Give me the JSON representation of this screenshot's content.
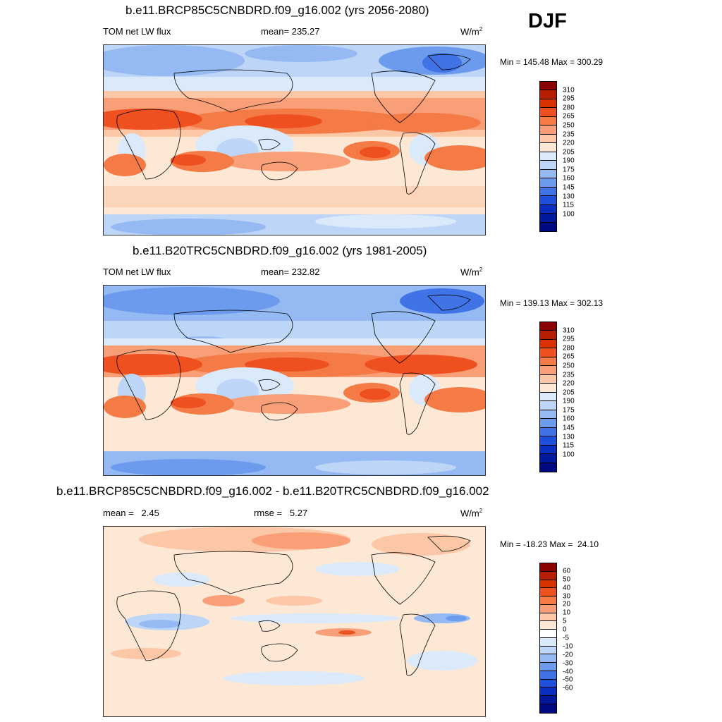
{
  "season": "DJF",
  "panels": [
    {
      "title": "b.e11.BRCP85C5CNBDRD.f09_g16.002 (yrs 2056-2080)",
      "left_label": "TOM net LW flux",
      "center_label": "mean= 235.27",
      "units": "W/m",
      "units_exp": "2",
      "minmax": "Min = 145.48 Max = 300.29",
      "colorbar": {
        "colors": [
          "#8b0000",
          "#b51e00",
          "#d93100",
          "#ee5020",
          "#f47a46",
          "#f99f78",
          "#fbc7a6",
          "#fde8d6",
          "#dbeafa",
          "#bdd5f7",
          "#94b9f3",
          "#6c9bee",
          "#3f73e6",
          "#1f50dc",
          "#0a2fc0",
          "#00189c",
          "#000a80"
        ],
        "ticks": [
          "310",
          "295",
          "280",
          "265",
          "250",
          "235",
          "220",
          "205",
          "190",
          "175",
          "160",
          "145",
          "130",
          "115",
          "100"
        ]
      }
    },
    {
      "title": "b.e11.B20TRC5CNBDRD.f09_g16.002 (yrs 1981-2005)",
      "left_label": "TOM net LW flux",
      "center_label": "mean= 232.82",
      "units": "W/m",
      "units_exp": "2",
      "minmax": "Min = 139.13 Max = 302.13",
      "colorbar": {
        "colors": [
          "#8b0000",
          "#b51e00",
          "#d93100",
          "#ee5020",
          "#f47a46",
          "#f99f78",
          "#fbc7a6",
          "#fde8d6",
          "#dbeafa",
          "#bdd5f7",
          "#94b9f3",
          "#6c9bee",
          "#3f73e6",
          "#1f50dc",
          "#0a2fc0",
          "#00189c",
          "#000a80"
        ],
        "ticks": [
          "310",
          "295",
          "280",
          "265",
          "250",
          "235",
          "220",
          "205",
          "190",
          "175",
          "160",
          "145",
          "130",
          "115",
          "100"
        ]
      }
    },
    {
      "title": "b.e11.BRCP85C5CNBDRD.f09_g16.002 - b.e11.B20TRC5CNBDRD.f09_g16.002",
      "left_label": "mean =   2.45",
      "center_label": "rmse =   5.27",
      "units": "W/m",
      "units_exp": "2",
      "minmax": "Min = -18.23 Max =  24.10",
      "colorbar": {
        "colors": [
          "#8b0000",
          "#b51e00",
          "#d93100",
          "#ee5020",
          "#f47a46",
          "#f99f78",
          "#fbc7a6",
          "#fde8d6",
          "#ffffff",
          "#dbeafa",
          "#bdd5f7",
          "#94b9f3",
          "#6c9bee",
          "#3f73e6",
          "#1f50dc",
          "#0a2fc0",
          "#00189c",
          "#000a80"
        ],
        "ticks": [
          "60",
          "50",
          "40",
          "30",
          "20",
          "10",
          "5",
          "0",
          "-5",
          "-10",
          "-20",
          "-30",
          "-40",
          "-50",
          "-60"
        ]
      }
    }
  ]
}
